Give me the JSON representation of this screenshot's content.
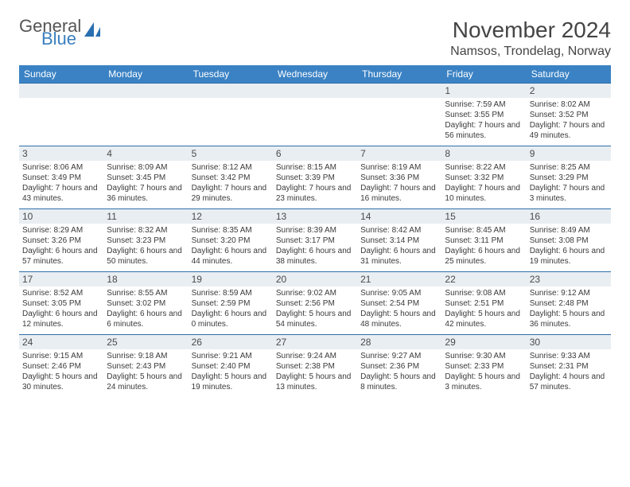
{
  "logo": {
    "text1": "General",
    "text2": "Blue",
    "icon_color": "#2a6fb0"
  },
  "title": "November 2024",
  "location": "Namsos, Trondelag, Norway",
  "header_bg": "#3a82c4",
  "daynum_bg": "#e9eef2",
  "border_color": "#2f6fa8",
  "day_names": [
    "Sunday",
    "Monday",
    "Tuesday",
    "Wednesday",
    "Thursday",
    "Friday",
    "Saturday"
  ],
  "weeks": [
    [
      null,
      null,
      null,
      null,
      null,
      {
        "n": "1",
        "sr": "7:59 AM",
        "ss": "3:55 PM",
        "dl": "7 hours and 56 minutes."
      },
      {
        "n": "2",
        "sr": "8:02 AM",
        "ss": "3:52 PM",
        "dl": "7 hours and 49 minutes."
      }
    ],
    [
      {
        "n": "3",
        "sr": "8:06 AM",
        "ss": "3:49 PM",
        "dl": "7 hours and 43 minutes."
      },
      {
        "n": "4",
        "sr": "8:09 AM",
        "ss": "3:45 PM",
        "dl": "7 hours and 36 minutes."
      },
      {
        "n": "5",
        "sr": "8:12 AM",
        "ss": "3:42 PM",
        "dl": "7 hours and 29 minutes."
      },
      {
        "n": "6",
        "sr": "8:15 AM",
        "ss": "3:39 PM",
        "dl": "7 hours and 23 minutes."
      },
      {
        "n": "7",
        "sr": "8:19 AM",
        "ss": "3:36 PM",
        "dl": "7 hours and 16 minutes."
      },
      {
        "n": "8",
        "sr": "8:22 AM",
        "ss": "3:32 PM",
        "dl": "7 hours and 10 minutes."
      },
      {
        "n": "9",
        "sr": "8:25 AM",
        "ss": "3:29 PM",
        "dl": "7 hours and 3 minutes."
      }
    ],
    [
      {
        "n": "10",
        "sr": "8:29 AM",
        "ss": "3:26 PM",
        "dl": "6 hours and 57 minutes."
      },
      {
        "n": "11",
        "sr": "8:32 AM",
        "ss": "3:23 PM",
        "dl": "6 hours and 50 minutes."
      },
      {
        "n": "12",
        "sr": "8:35 AM",
        "ss": "3:20 PM",
        "dl": "6 hours and 44 minutes."
      },
      {
        "n": "13",
        "sr": "8:39 AM",
        "ss": "3:17 PM",
        "dl": "6 hours and 38 minutes."
      },
      {
        "n": "14",
        "sr": "8:42 AM",
        "ss": "3:14 PM",
        "dl": "6 hours and 31 minutes."
      },
      {
        "n": "15",
        "sr": "8:45 AM",
        "ss": "3:11 PM",
        "dl": "6 hours and 25 minutes."
      },
      {
        "n": "16",
        "sr": "8:49 AM",
        "ss": "3:08 PM",
        "dl": "6 hours and 19 minutes."
      }
    ],
    [
      {
        "n": "17",
        "sr": "8:52 AM",
        "ss": "3:05 PM",
        "dl": "6 hours and 12 minutes."
      },
      {
        "n": "18",
        "sr": "8:55 AM",
        "ss": "3:02 PM",
        "dl": "6 hours and 6 minutes."
      },
      {
        "n": "19",
        "sr": "8:59 AM",
        "ss": "2:59 PM",
        "dl": "6 hours and 0 minutes."
      },
      {
        "n": "20",
        "sr": "9:02 AM",
        "ss": "2:56 PM",
        "dl": "5 hours and 54 minutes."
      },
      {
        "n": "21",
        "sr": "9:05 AM",
        "ss": "2:54 PM",
        "dl": "5 hours and 48 minutes."
      },
      {
        "n": "22",
        "sr": "9:08 AM",
        "ss": "2:51 PM",
        "dl": "5 hours and 42 minutes."
      },
      {
        "n": "23",
        "sr": "9:12 AM",
        "ss": "2:48 PM",
        "dl": "5 hours and 36 minutes."
      }
    ],
    [
      {
        "n": "24",
        "sr": "9:15 AM",
        "ss": "2:46 PM",
        "dl": "5 hours and 30 minutes."
      },
      {
        "n": "25",
        "sr": "9:18 AM",
        "ss": "2:43 PM",
        "dl": "5 hours and 24 minutes."
      },
      {
        "n": "26",
        "sr": "9:21 AM",
        "ss": "2:40 PM",
        "dl": "5 hours and 19 minutes."
      },
      {
        "n": "27",
        "sr": "9:24 AM",
        "ss": "2:38 PM",
        "dl": "5 hours and 13 minutes."
      },
      {
        "n": "28",
        "sr": "9:27 AM",
        "ss": "2:36 PM",
        "dl": "5 hours and 8 minutes."
      },
      {
        "n": "29",
        "sr": "9:30 AM",
        "ss": "2:33 PM",
        "dl": "5 hours and 3 minutes."
      },
      {
        "n": "30",
        "sr": "9:33 AM",
        "ss": "2:31 PM",
        "dl": "4 hours and 57 minutes."
      }
    ]
  ],
  "labels": {
    "sunrise": "Sunrise:",
    "sunset": "Sunset:",
    "daylight": "Daylight:"
  }
}
